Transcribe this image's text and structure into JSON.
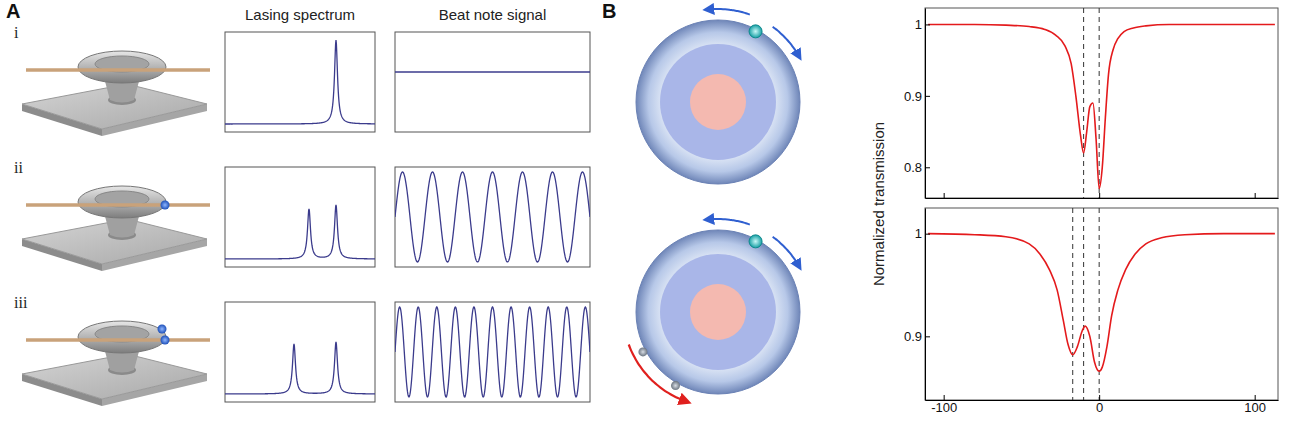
{
  "panel_a": {
    "letter": "A",
    "row_labels": [
      "i",
      "ii",
      "iii"
    ],
    "column_titles": [
      "Lasing spectrum",
      "Beat note signal"
    ],
    "particles": [
      0,
      1,
      2
    ]
  },
  "panel_b": {
    "letter": "B",
    "ylabel": "Normalized transmission",
    "rings": [
      {
        "particles": 1,
        "scatterers": 0
      },
      {
        "particles": 1,
        "scatterers": 2
      }
    ]
  },
  "chart_data": [
    {
      "type": "spectrum",
      "xlim": [
        0,
        1
      ],
      "ylim": [
        0,
        1
      ],
      "tick_labels": false,
      "color": "#3b3b8c",
      "baseline": 0.08,
      "peaks": [
        {
          "position": 0.74,
          "height": 0.92
        }
      ]
    },
    {
      "type": "spectrum",
      "xlim": [
        0,
        1
      ],
      "ylim": [
        0,
        1
      ],
      "tick_labels": false,
      "color": "#3b3b8c",
      "baseline": 0.08,
      "peaks": [
        {
          "position": 0.56,
          "height": 0.58
        },
        {
          "position": 0.74,
          "height": 0.62
        }
      ]
    },
    {
      "type": "spectrum",
      "xlim": [
        0,
        1
      ],
      "ylim": [
        0,
        1
      ],
      "tick_labels": false,
      "color": "#3b3b8c",
      "baseline": 0.08,
      "peaks": [
        {
          "position": 0.46,
          "height": 0.58
        },
        {
          "position": 0.74,
          "height": 0.6
        }
      ]
    },
    {
      "type": "beat_note",
      "xlim": [
        0,
        1
      ],
      "ylim": [
        -1,
        1
      ],
      "tick_labels": false,
      "color": "#3b3b8c",
      "frequency": 0,
      "amplitude": 0,
      "offset": 0.2
    },
    {
      "type": "beat_note",
      "xlim": [
        0,
        1
      ],
      "ylim": [
        -1,
        1
      ],
      "tick_labels": false,
      "color": "#3b3b8c",
      "frequency": 6.5,
      "amplitude": 0.9,
      "offset": 0
    },
    {
      "type": "beat_note",
      "xlim": [
        0,
        1
      ],
      "ylim": [
        -1,
        1
      ],
      "tick_labels": false,
      "color": "#3b3b8c",
      "frequency": 10.5,
      "amplitude": 0.9,
      "offset": 0
    },
    {
      "type": "line",
      "color": "#e41a1c",
      "tick_labels": "y",
      "x": [
        -110,
        -80,
        -60,
        -45,
        -35,
        -28,
        -22,
        -18,
        -15,
        -12,
        -10,
        -8,
        -6,
        -4,
        -2,
        0,
        2,
        4,
        6,
        9,
        12,
        16,
        22,
        30,
        45,
        60,
        80,
        113
      ],
      "values": [
        1,
        1,
        0.999,
        0.997,
        0.993,
        0.985,
        0.97,
        0.945,
        0.9,
        0.845,
        0.82,
        0.85,
        0.885,
        0.89,
        0.84,
        0.77,
        0.8,
        0.87,
        0.93,
        0.965,
        0.98,
        0.99,
        0.995,
        0.998,
        1,
        1,
        1,
        1
      ],
      "xlim": [
        -112,
        115
      ],
      "ylim": [
        0.757,
        1.023
      ],
      "xticks": [
        -100,
        0,
        100
      ],
      "yticks": [
        0.8,
        0.9,
        1
      ],
      "vlines": [
        -10,
        0
      ]
    },
    {
      "type": "line",
      "color": "#e41a1c",
      "tick_labels": true,
      "x": [
        -110,
        -80,
        -60,
        -45,
        -38,
        -32,
        -27,
        -23,
        -20,
        -17,
        -14,
        -11,
        -9,
        -6,
        -3,
        0,
        2,
        5,
        8,
        12,
        17,
        23,
        30,
        40,
        55,
        80,
        113
      ],
      "values": [
        1,
        0.999,
        0.997,
        0.99,
        0.98,
        0.965,
        0.945,
        0.915,
        0.892,
        0.882,
        0.89,
        0.905,
        0.91,
        0.9,
        0.875,
        0.866,
        0.87,
        0.89,
        0.92,
        0.945,
        0.965,
        0.98,
        0.99,
        0.996,
        0.999,
        1,
        1
      ],
      "xlim": [
        -112,
        115
      ],
      "ylim": [
        0.838,
        1.025
      ],
      "xticks": [
        -100,
        0,
        100
      ],
      "yticks": [
        0.9,
        1
      ],
      "vlines": [
        -17,
        -10,
        0
      ]
    }
  ]
}
